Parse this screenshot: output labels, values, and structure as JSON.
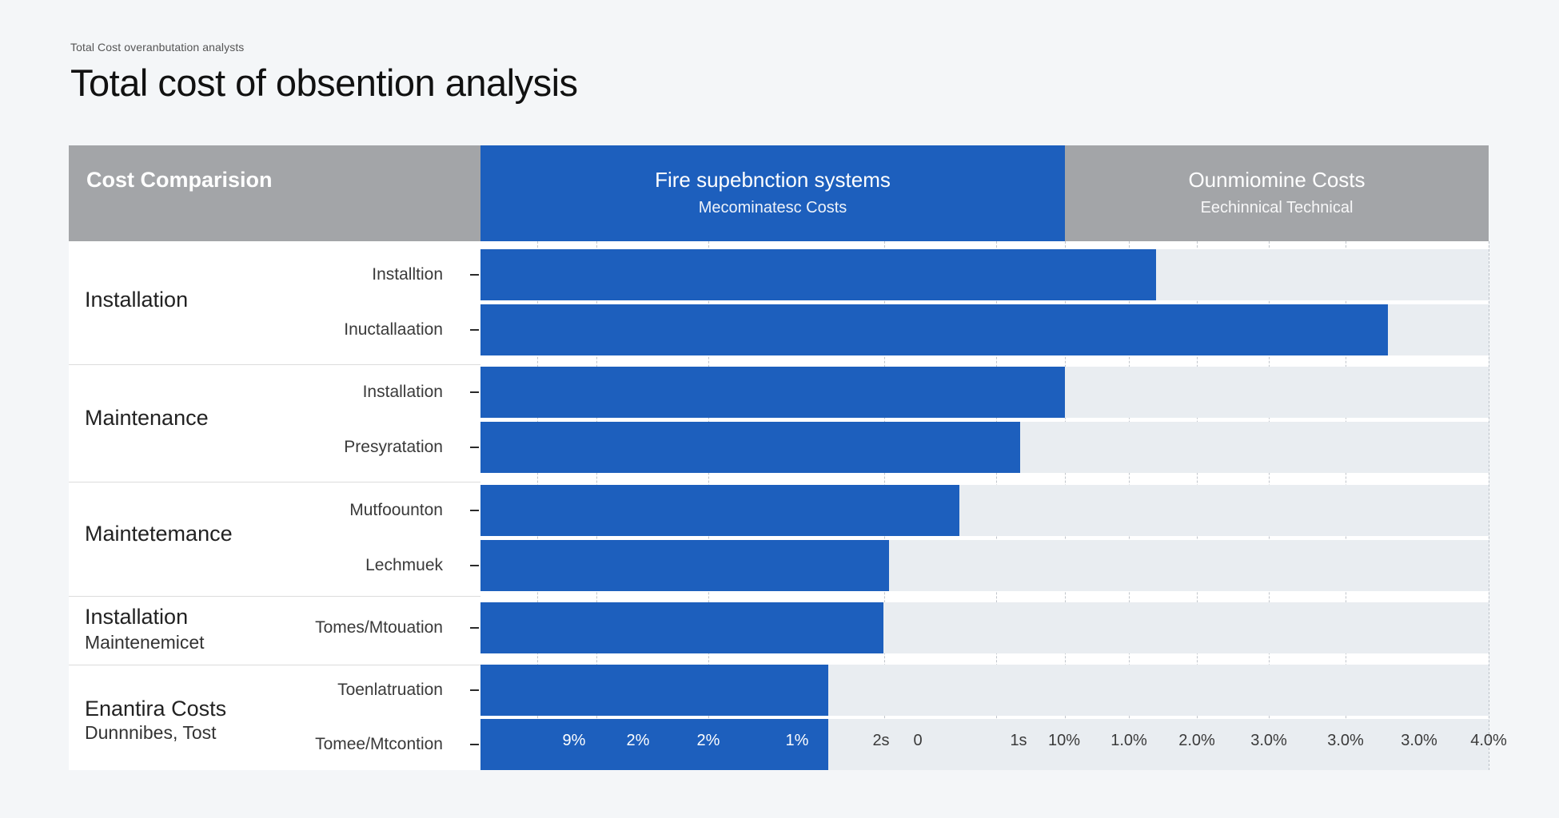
{
  "breadcrumb": "Total Cost overanbutation analysts",
  "title": "Total cost of obsention analysis",
  "colors": {
    "accent": "#1d5fbd",
    "header_gray": "#a3a5a8",
    "track": "#e9edf1"
  },
  "header": {
    "left": "Cost Comparision",
    "middle": {
      "title": "Fire supebnction systems",
      "subtitle": "Mecominatesc Costs"
    },
    "right": {
      "title": "Ounmiomine Costs",
      "subtitle": "Eechinnical Technical"
    }
  },
  "groups": [
    {
      "title": "Installation",
      "subtitle": ""
    },
    {
      "title": "Maintenance",
      "subtitle": ""
    },
    {
      "title": "Maintetemance",
      "subtitle": ""
    },
    {
      "title": "Installation",
      "subtitle": "Maintenemicet"
    },
    {
      "title": "Enantira Costs",
      "subtitle": "Dunnnibes, Tost"
    }
  ],
  "chart_data": {
    "type": "bar",
    "orientation": "horizontal",
    "title": "Total cost of obsention analysis",
    "categories": [
      "Installtion",
      "Inuctallaation",
      "Installation",
      "Presyratation",
      "Mutfoounton",
      "Lechmuek",
      "Tomes/Mtouation",
      "Toenlatruation",
      "Tomee/Mtcontion"
    ],
    "values": [
      0.67,
      0.9,
      0.58,
      0.535,
      0.475,
      0.405,
      0.4,
      0.345,
      0.345
    ],
    "value_units": "fraction of full axis",
    "xlim": [
      0,
      1
    ],
    "grid": true,
    "axis_tick_labels": [
      "9%",
      "2%",
      "2%",
      "1%",
      "2s",
      "0",
      "1s",
      "10%",
      "1.0%",
      "2.0%",
      "3.0%",
      "3.0%",
      "3.0%",
      "4.0%"
    ]
  }
}
